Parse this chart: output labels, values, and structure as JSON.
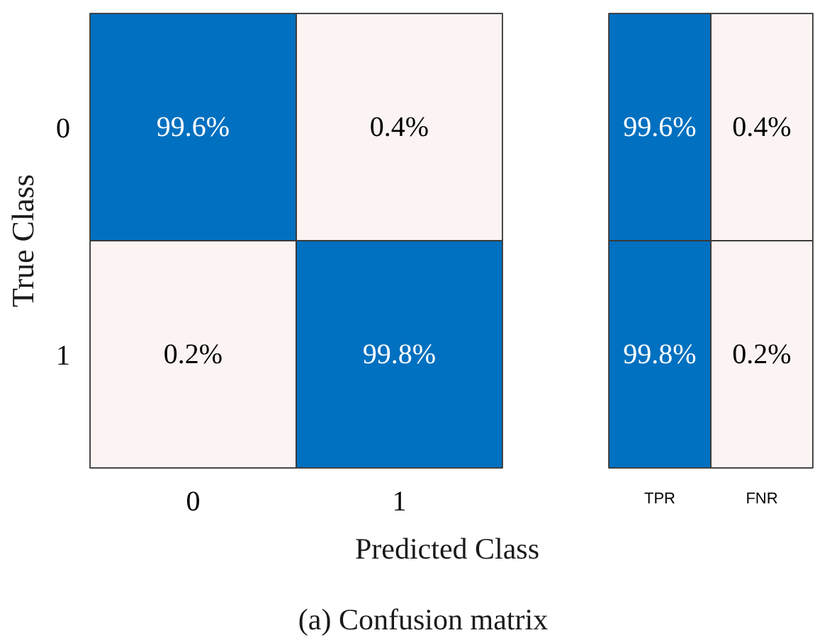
{
  "chart_data": [
    {
      "type": "heatmap",
      "xlabel": "Predicted Class",
      "ylabel": "True Class",
      "categories": [
        "0",
        "1"
      ],
      "y_categories": [
        "0",
        "1"
      ],
      "cells": [
        [
          99.6,
          0.4
        ],
        [
          0.2,
          99.8
        ]
      ],
      "cell_labels": [
        [
          "99.6%",
          "0.4%"
        ],
        [
          "0.2%",
          "99.8%"
        ]
      ],
      "colors": [
        "#fcf4f2",
        "#0070c0"
      ],
      "annotations": [
        "(a) Confusion matrix"
      ]
    },
    {
      "type": "heatmap",
      "categories": [
        "TPR",
        "FNR"
      ],
      "y_categories": [
        "0",
        "1"
      ],
      "cells": [
        [
          99.6,
          0.4
        ],
        [
          99.8,
          0.2
        ]
      ],
      "cell_labels": [
        [
          "99.6%",
          "0.4%"
        ],
        [
          "99.8%",
          "0.2%"
        ]
      ],
      "colors": [
        "#fcf4f2",
        "#0070c0"
      ],
      "tick_labels": "x"
    }
  ]
}
